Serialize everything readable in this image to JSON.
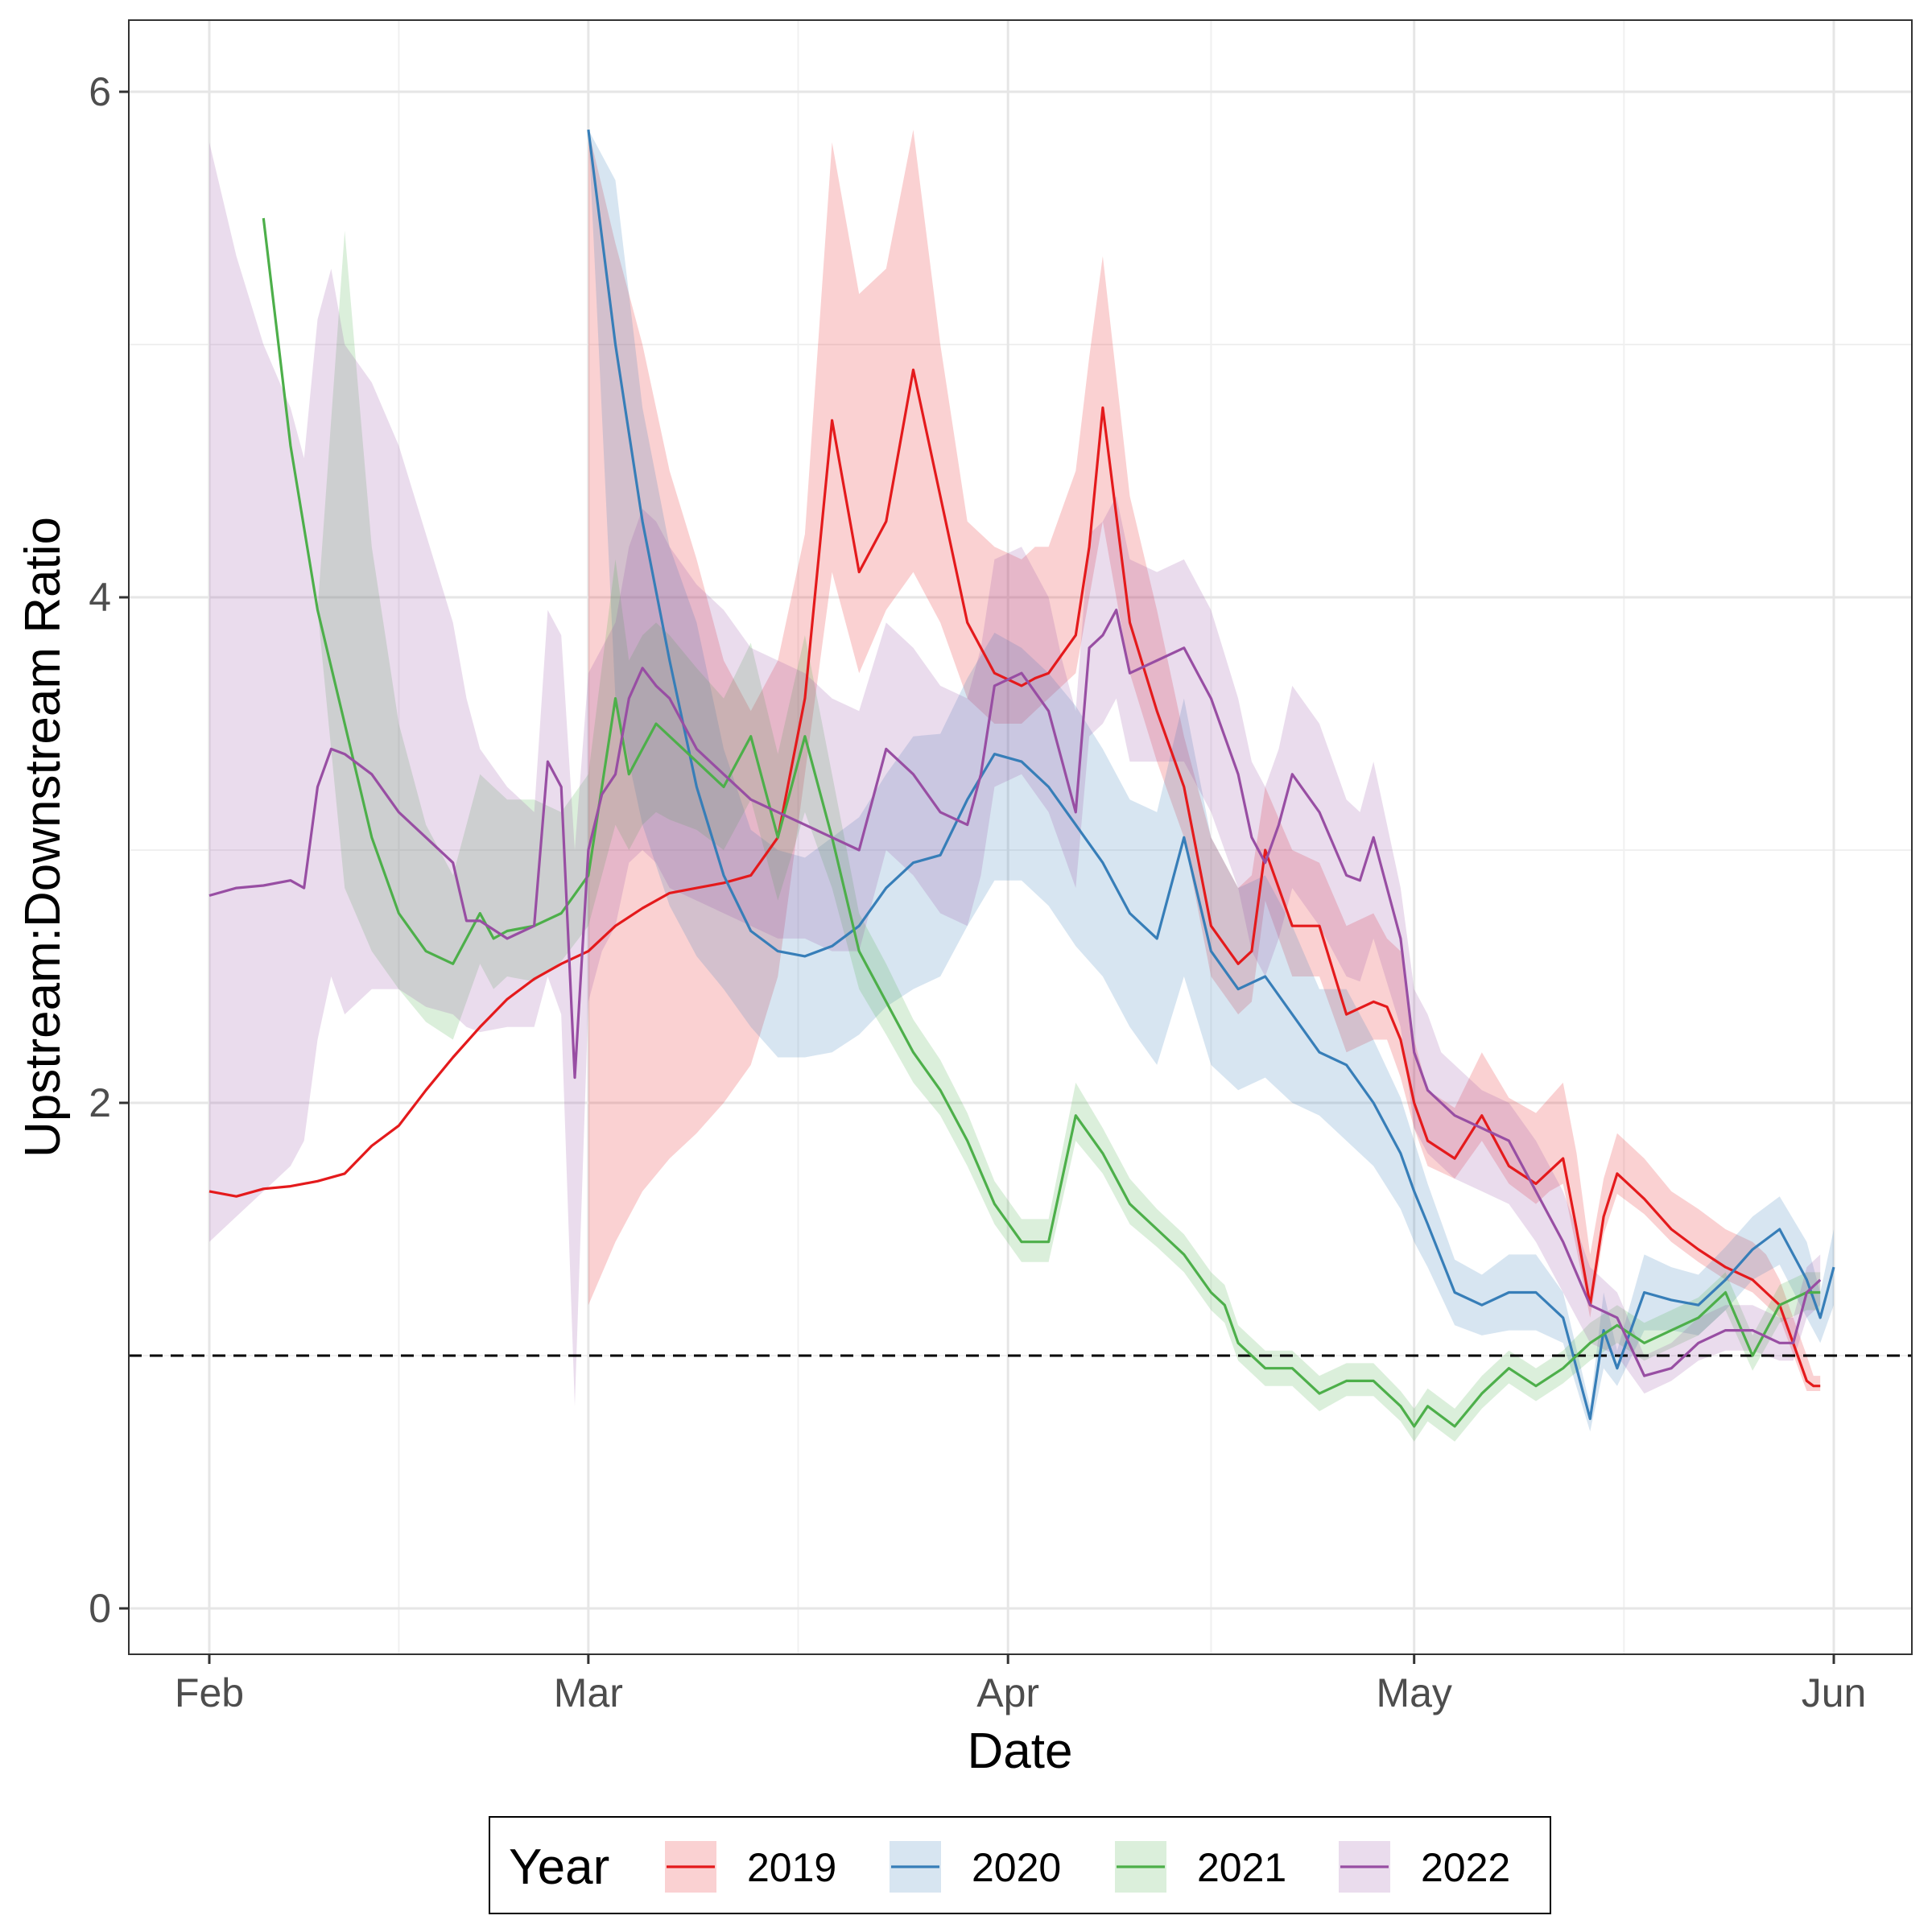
{
  "chart_data": {
    "type": "line",
    "xlabel": "Date",
    "ylabel": "Upstream:Downstream Ratio",
    "x_unit": "day of year (Jan 1 = 0)",
    "xlim": [
      28,
      156
    ],
    "ylim": [
      -0.18,
      6.3
    ],
    "x_ticks": [
      {
        "label": "Feb",
        "value": 31
      },
      {
        "label": "Mar",
        "value": 59
      },
      {
        "label": "Apr",
        "value": 90
      },
      {
        "label": "May",
        "value": 120
      },
      {
        "label": "Jun",
        "value": 151
      }
    ],
    "x_minor_ticks": [
      45,
      74.5,
      105,
      135.5
    ],
    "y_ticks": [
      {
        "label": "0",
        "value": 0
      },
      {
        "label": "2",
        "value": 2
      },
      {
        "label": "4",
        "value": 4
      },
      {
        "label": "6",
        "value": 6
      }
    ],
    "y_minor_ticks": [
      1,
      3,
      5
    ],
    "reference_line": {
      "y": 1,
      "style": "dashed",
      "color": "#000000"
    },
    "legend": {
      "title": "Year",
      "position": "bottom",
      "box": true
    },
    "series": [
      {
        "name": "2019",
        "color": "#e41a1c",
        "x": [
          31,
          33,
          35,
          37,
          39,
          41,
          43,
          45,
          47,
          49,
          51,
          53,
          55,
          57,
          59,
          61,
          63,
          65,
          67,
          69,
          71,
          73,
          75,
          77,
          79,
          81,
          83,
          85,
          87,
          89,
          91,
          92,
          93,
          95,
          96,
          97,
          99,
          101,
          103,
          105,
          107,
          108,
          109,
          111,
          113,
          115,
          117,
          118,
          119,
          120,
          121,
          123,
          125,
          127,
          129,
          130,
          131,
          132,
          133,
          134,
          135,
          137,
          139,
          141,
          143,
          145,
          146,
          147,
          149,
          149.5,
          150
        ],
        "values": [
          1.65,
          1.63,
          1.66,
          1.67,
          1.69,
          1.72,
          1.83,
          1.91,
          2.05,
          2.18,
          2.3,
          2.41,
          2.49,
          2.55,
          2.6,
          2.7,
          2.77,
          2.83,
          2.85,
          2.87,
          2.9,
          3.05,
          3.6,
          4.7,
          4.1,
          4.3,
          4.9,
          4.4,
          3.9,
          3.7,
          3.65,
          3.68,
          3.7,
          3.85,
          4.2,
          4.75,
          3.9,
          3.55,
          3.25,
          2.7,
          2.55,
          2.6,
          3.0,
          2.7,
          2.7,
          2.35,
          2.4,
          2.38,
          2.25,
          2.0,
          1.85,
          1.78,
          1.95,
          1.75,
          1.68,
          1.73,
          1.78,
          1.5,
          1.2,
          1.55,
          1.72,
          1.62,
          1.5,
          1.42,
          1.35,
          1.3,
          1.25,
          1.2,
          0.9,
          0.88,
          0.88
        ],
        "lower": [
          1.65,
          1.63,
          1.66,
          1.67,
          1.69,
          1.72,
          1.83,
          1.91,
          2.05,
          2.18,
          2.3,
          2.41,
          2.49,
          2.55,
          1.2,
          1.45,
          1.65,
          1.78,
          1.88,
          2.0,
          2.15,
          2.5,
          3.3,
          4.1,
          3.7,
          3.95,
          4.1,
          3.9,
          3.6,
          3.5,
          3.5,
          3.55,
          3.6,
          3.7,
          4.0,
          4.3,
          3.7,
          3.35,
          3.05,
          2.5,
          2.35,
          2.4,
          2.8,
          2.5,
          2.5,
          2.2,
          2.25,
          2.25,
          2.1,
          1.9,
          1.75,
          1.7,
          1.85,
          1.68,
          1.6,
          1.65,
          1.68,
          1.42,
          1.15,
          1.48,
          1.64,
          1.56,
          1.45,
          1.37,
          1.3,
          1.25,
          1.2,
          1.15,
          0.86,
          0.86,
          0.86
        ],
        "upper": [
          1.65,
          1.63,
          1.66,
          1.67,
          1.69,
          1.72,
          1.83,
          1.91,
          2.05,
          2.18,
          2.3,
          2.41,
          2.49,
          2.55,
          5.85,
          5.4,
          5.0,
          4.5,
          4.15,
          3.75,
          3.55,
          3.75,
          4.25,
          5.8,
          5.2,
          5.3,
          5.85,
          5.0,
          4.3,
          4.2,
          4.15,
          4.2,
          4.2,
          4.5,
          4.95,
          5.35,
          4.4,
          3.95,
          3.45,
          3.05,
          2.85,
          2.9,
          3.25,
          3.0,
          2.95,
          2.7,
          2.75,
          2.65,
          2.6,
          2.25,
          2.05,
          1.98,
          2.2,
          2.02,
          1.96,
          2.02,
          2.08,
          1.8,
          1.4,
          1.7,
          1.88,
          1.78,
          1.65,
          1.58,
          1.5,
          1.45,
          1.4,
          1.3,
          1.0,
          0.92,
          0.92
        ],
        "ci_start": 59
      },
      {
        "name": "2020",
        "color": "#377eb8",
        "x": [
          59,
          61,
          63,
          65,
          67,
          69,
          71,
          73,
          75,
          77,
          79,
          81,
          83,
          85,
          87,
          89,
          91,
          93,
          95,
          97,
          99,
          101,
          103,
          105,
          107,
          109,
          111,
          113,
          115,
          117,
          119,
          120,
          121,
          123,
          125,
          127,
          129,
          131,
          133,
          134,
          135,
          137,
          139,
          141,
          143,
          145,
          147,
          149,
          150,
          151
        ],
        "values": [
          5.85,
          5.0,
          4.3,
          3.75,
          3.25,
          2.9,
          2.68,
          2.6,
          2.58,
          2.62,
          2.7,
          2.85,
          2.95,
          2.98,
          3.2,
          3.38,
          3.35,
          3.25,
          3.1,
          2.95,
          2.75,
          2.65,
          3.05,
          2.6,
          2.45,
          2.5,
          2.35,
          2.2,
          2.15,
          2.0,
          1.8,
          1.65,
          1.52,
          1.25,
          1.2,
          1.25,
          1.25,
          1.15,
          0.75,
          1.1,
          0.95,
          1.25,
          1.22,
          1.2,
          1.3,
          1.42,
          1.5,
          1.3,
          1.15,
          1.35
        ],
        "lower": [
          5.85,
          3.6,
          3.1,
          2.78,
          2.58,
          2.45,
          2.3,
          2.18,
          2.18,
          2.2,
          2.27,
          2.38,
          2.45,
          2.5,
          2.7,
          2.88,
          2.88,
          2.78,
          2.62,
          2.5,
          2.3,
          2.15,
          2.5,
          2.15,
          2.05,
          2.1,
          2.0,
          1.95,
          1.85,
          1.75,
          1.58,
          1.45,
          1.35,
          1.12,
          1.08,
          1.1,
          1.1,
          1.05,
          0.7,
          0.95,
          0.88,
          1.1,
          1.1,
          1.08,
          1.18,
          1.3,
          1.36,
          1.15,
          1.05,
          1.2
        ],
        "upper": [
          5.85,
          5.65,
          4.75,
          4.2,
          3.9,
          3.4,
          3.08,
          3.0,
          2.97,
          3.05,
          3.13,
          3.3,
          3.45,
          3.46,
          3.68,
          3.86,
          3.8,
          3.7,
          3.57,
          3.4,
          3.2,
          3.15,
          3.6,
          3.05,
          2.85,
          2.9,
          2.7,
          2.45,
          2.45,
          2.25,
          2.02,
          1.85,
          1.68,
          1.38,
          1.32,
          1.4,
          1.4,
          1.25,
          0.8,
          1.25,
          1.02,
          1.4,
          1.35,
          1.32,
          1.43,
          1.55,
          1.63,
          1.45,
          1.25,
          1.5
        ],
        "ci_start": 59
      },
      {
        "name": "2021",
        "color": "#4daf4a",
        "x": [
          35,
          37,
          39,
          41,
          43,
          45,
          47,
          49,
          51,
          52,
          53,
          55,
          57,
          59,
          61,
          62,
          63,
          64,
          65,
          67,
          69,
          71,
          73,
          75,
          77,
          79,
          81,
          83,
          85,
          87,
          89,
          91,
          93,
          95,
          97,
          99,
          101,
          103,
          105,
          106,
          107,
          109,
          111,
          113,
          115,
          117,
          119,
          120,
          121,
          123,
          125,
          127,
          129,
          131,
          133,
          135,
          137,
          139,
          141,
          143,
          145,
          147,
          149,
          150
        ],
        "values": [
          5.5,
          4.6,
          3.95,
          3.5,
          3.05,
          2.75,
          2.6,
          2.55,
          2.75,
          2.65,
          2.68,
          2.7,
          2.75,
          2.9,
          3.6,
          3.3,
          3.4,
          3.5,
          3.45,
          3.35,
          3.25,
          3.45,
          3.05,
          3.45,
          3.05,
          2.6,
          2.4,
          2.2,
          2.05,
          1.85,
          1.6,
          1.45,
          1.45,
          1.95,
          1.8,
          1.6,
          1.5,
          1.4,
          1.25,
          1.2,
          1.05,
          0.95,
          0.95,
          0.85,
          0.9,
          0.9,
          0.8,
          0.72,
          0.8,
          0.72,
          0.85,
          0.95,
          0.88,
          0.95,
          1.05,
          1.12,
          1.05,
          1.1,
          1.15,
          1.25,
          1.0,
          1.2,
          1.25,
          1.25
        ],
        "lower": [
          5.5,
          4.6,
          3.95,
          2.85,
          2.6,
          2.45,
          2.32,
          2.25,
          2.55,
          2.45,
          2.5,
          2.48,
          2.56,
          2.7,
          3.1,
          3.0,
          3.1,
          3.15,
          3.12,
          3.08,
          3.0,
          3.2,
          2.8,
          3.15,
          2.85,
          2.45,
          2.27,
          2.08,
          1.95,
          1.75,
          1.52,
          1.37,
          1.37,
          1.85,
          1.72,
          1.52,
          1.43,
          1.33,
          1.18,
          1.13,
          0.98,
          0.88,
          0.88,
          0.78,
          0.84,
          0.84,
          0.74,
          0.66,
          0.74,
          0.66,
          0.79,
          0.89,
          0.82,
          0.89,
          0.98,
          1.05,
          0.98,
          1.03,
          1.08,
          1.18,
          0.94,
          1.13,
          1.18,
          1.18
        ],
        "upper": [
          5.5,
          4.6,
          3.95,
          5.45,
          4.2,
          3.5,
          3.1,
          2.9,
          3.3,
          3.25,
          3.2,
          3.2,
          3.15,
          3.3,
          4.15,
          3.75,
          3.85,
          3.9,
          3.85,
          3.72,
          3.6,
          3.82,
          3.38,
          3.85,
          3.3,
          2.75,
          2.55,
          2.33,
          2.17,
          1.96,
          1.69,
          1.54,
          1.54,
          2.08,
          1.9,
          1.7,
          1.58,
          1.48,
          1.33,
          1.28,
          1.12,
          1.02,
          1.02,
          0.92,
          0.97,
          0.97,
          0.86,
          0.79,
          0.87,
          0.79,
          0.92,
          1.02,
          0.95,
          1.02,
          1.13,
          1.2,
          1.13,
          1.18,
          1.23,
          1.33,
          1.08,
          1.28,
          1.33,
          1.33
        ],
        "ci_start": 39
      },
      {
        "name": "2022",
        "color": "#984ea3",
        "x": [
          31,
          33,
          35,
          37,
          38,
          39,
          40,
          41,
          43,
          45,
          47,
          49,
          50,
          51,
          53,
          55,
          56,
          57,
          58,
          59,
          60,
          61,
          62,
          63,
          64,
          65,
          67,
          69,
          71,
          73,
          75,
          77,
          79,
          81,
          83,
          85,
          87,
          88,
          89,
          91,
          93,
          94,
          95,
          96,
          97,
          98,
          99,
          101,
          103,
          105,
          107,
          108,
          109,
          110,
          111,
          113,
          115,
          116,
          117,
          119,
          120,
          121,
          122,
          123,
          125,
          127,
          129,
          131,
          133,
          135,
          137,
          139,
          141,
          143,
          145,
          147,
          148,
          149,
          150
        ],
        "values": [
          2.82,
          2.85,
          2.86,
          2.88,
          2.85,
          3.25,
          3.4,
          3.38,
          3.3,
          3.15,
          3.05,
          2.95,
          2.72,
          2.72,
          2.65,
          2.7,
          3.35,
          3.25,
          2.1,
          3.0,
          3.22,
          3.3,
          3.6,
          3.72,
          3.65,
          3.6,
          3.4,
          3.3,
          3.2,
          3.15,
          3.1,
          3.05,
          3.0,
          3.4,
          3.3,
          3.15,
          3.1,
          3.3,
          3.65,
          3.7,
          3.55,
          3.35,
          3.15,
          3.8,
          3.85,
          3.95,
          3.7,
          3.75,
          3.8,
          3.6,
          3.3,
          3.05,
          2.95,
          3.1,
          3.3,
          3.15,
          2.9,
          2.88,
          3.05,
          2.65,
          2.2,
          2.05,
          2.0,
          1.95,
          1.9,
          1.85,
          1.65,
          1.45,
          1.2,
          1.15,
          0.92,
          0.95,
          1.05,
          1.1,
          1.1,
          1.05,
          1.05,
          1.25,
          1.3
        ],
        "lower": [
          1.45,
          1.55,
          1.65,
          1.75,
          1.85,
          2.25,
          2.5,
          2.35,
          2.45,
          2.45,
          2.38,
          2.35,
          2.3,
          2.28,
          2.3,
          2.3,
          2.5,
          2.35,
          0.8,
          2.4,
          2.6,
          2.7,
          2.95,
          3.0,
          2.95,
          2.85,
          2.8,
          2.75,
          2.7,
          2.65,
          2.65,
          2.6,
          2.6,
          3.0,
          2.9,
          2.75,
          2.7,
          2.9,
          3.25,
          3.3,
          3.15,
          3.0,
          2.85,
          3.45,
          3.5,
          3.6,
          3.35,
          3.35,
          3.35,
          3.15,
          2.85,
          2.6,
          2.5,
          2.65,
          2.85,
          2.7,
          2.5,
          2.48,
          2.65,
          2.3,
          1.9,
          1.8,
          1.75,
          1.7,
          1.65,
          1.6,
          1.45,
          1.25,
          1.05,
          1.0,
          0.85,
          0.9,
          0.98,
          1.02,
          1.02,
          0.98,
          0.98,
          1.15,
          1.2
        ],
        "upper": [
          5.8,
          5.35,
          5.0,
          4.75,
          4.55,
          5.1,
          5.3,
          5.0,
          4.85,
          4.6,
          4.25,
          3.9,
          3.6,
          3.4,
          3.25,
          3.15,
          3.95,
          3.85,
          3.0,
          3.7,
          3.8,
          3.9,
          4.2,
          4.35,
          4.3,
          4.2,
          4.05,
          3.95,
          3.8,
          3.75,
          3.7,
          3.6,
          3.55,
          3.9,
          3.8,
          3.65,
          3.6,
          3.8,
          4.15,
          4.2,
          4.0,
          3.75,
          3.55,
          4.25,
          4.3,
          4.4,
          4.15,
          4.1,
          4.15,
          3.95,
          3.6,
          3.35,
          3.25,
          3.4,
          3.65,
          3.5,
          3.2,
          3.15,
          3.35,
          2.85,
          2.45,
          2.35,
          2.2,
          2.15,
          2.05,
          2.0,
          1.85,
          1.65,
          1.35,
          1.25,
          1.0,
          1.05,
          1.15,
          1.2,
          1.2,
          1.15,
          1.15,
          1.35,
          1.4
        ],
        "ci_start": 31
      }
    ]
  }
}
